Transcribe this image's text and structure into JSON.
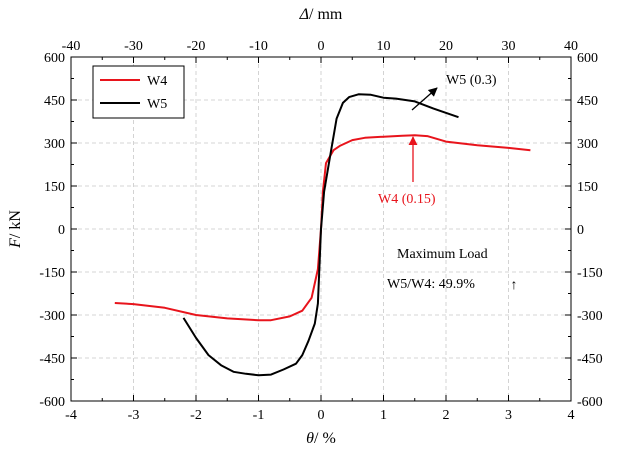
{
  "chart_data": {
    "type": "line",
    "xlabel": {
      "symbol": "θ",
      "unit": "/ %"
    },
    "x2label": {
      "symbol": "Δ",
      "unit": "/ mm"
    },
    "ylabel": {
      "symbol": "F",
      "unit": "/ kN"
    },
    "xlim": [
      -4,
      4
    ],
    "x2lim": [
      -40,
      40
    ],
    "ylim": [
      -600,
      600
    ],
    "x_ticks": [
      "-4",
      "-3",
      "-2",
      "-1",
      "0",
      "1",
      "2",
      "3",
      "4"
    ],
    "x2_ticks": [
      "-40",
      "-30",
      "-20",
      "-10",
      "0",
      "10",
      "20",
      "30",
      "40"
    ],
    "y_ticks": [
      "-600",
      "-450",
      "-300",
      "-150",
      "0",
      "150",
      "300",
      "450",
      "600"
    ],
    "grid": true,
    "legend": {
      "position": "top-left"
    },
    "series": [
      {
        "name": "W4",
        "color": "#e8141c",
        "points": [
          [
            -3.3,
            -258
          ],
          [
            -3.0,
            -262
          ],
          [
            -2.5,
            -275
          ],
          [
            -2.0,
            -300
          ],
          [
            -1.5,
            -312
          ],
          [
            -1.0,
            -318
          ],
          [
            -0.8,
            -318
          ],
          [
            -0.5,
            -305
          ],
          [
            -0.3,
            -285
          ],
          [
            -0.15,
            -240
          ],
          [
            -0.05,
            -140
          ],
          [
            0,
            0
          ],
          [
            0.03,
            130
          ],
          [
            0.08,
            230
          ],
          [
            0.2,
            275
          ],
          [
            0.3,
            290
          ],
          [
            0.5,
            310
          ],
          [
            0.7,
            318
          ],
          [
            1.0,
            322
          ],
          [
            1.3,
            325
          ],
          [
            1.5,
            327
          ],
          [
            1.7,
            324
          ],
          [
            2.0,
            305
          ],
          [
            2.5,
            292
          ],
          [
            3.0,
            283
          ],
          [
            3.35,
            275
          ]
        ]
      },
      {
        "name": "W5",
        "color": "#000000",
        "points": [
          [
            -2.2,
            -310
          ],
          [
            -2.0,
            -380
          ],
          [
            -1.8,
            -440
          ],
          [
            -1.6,
            -475
          ],
          [
            -1.4,
            -498
          ],
          [
            -1.2,
            -505
          ],
          [
            -1.0,
            -510
          ],
          [
            -0.8,
            -508
          ],
          [
            -0.6,
            -490
          ],
          [
            -0.4,
            -470
          ],
          [
            -0.3,
            -440
          ],
          [
            -0.2,
            -390
          ],
          [
            -0.1,
            -330
          ],
          [
            -0.05,
            -260
          ],
          [
            0,
            0
          ],
          [
            0.05,
            130
          ],
          [
            0.15,
            260
          ],
          [
            0.25,
            385
          ],
          [
            0.35,
            440
          ],
          [
            0.45,
            460
          ],
          [
            0.6,
            470
          ],
          [
            0.8,
            468
          ],
          [
            1.0,
            458
          ],
          [
            1.2,
            455
          ],
          [
            1.5,
            445
          ],
          [
            1.8,
            420
          ],
          [
            2.2,
            390
          ]
        ]
      }
    ],
    "annotations": [
      {
        "text": "W5 (0.3)",
        "color": "#000000",
        "arrow_to": [
          1.75,
          435
        ]
      },
      {
        "text": "W4 (0.15)",
        "color": "#e8141c",
        "arrow_to": [
          1.45,
          328
        ]
      },
      {
        "text": "Maximum Load",
        "color": "#000000"
      },
      {
        "text": "W5/W4: 49.9%",
        "color": "#000000",
        "symbol": "↑"
      }
    ]
  }
}
